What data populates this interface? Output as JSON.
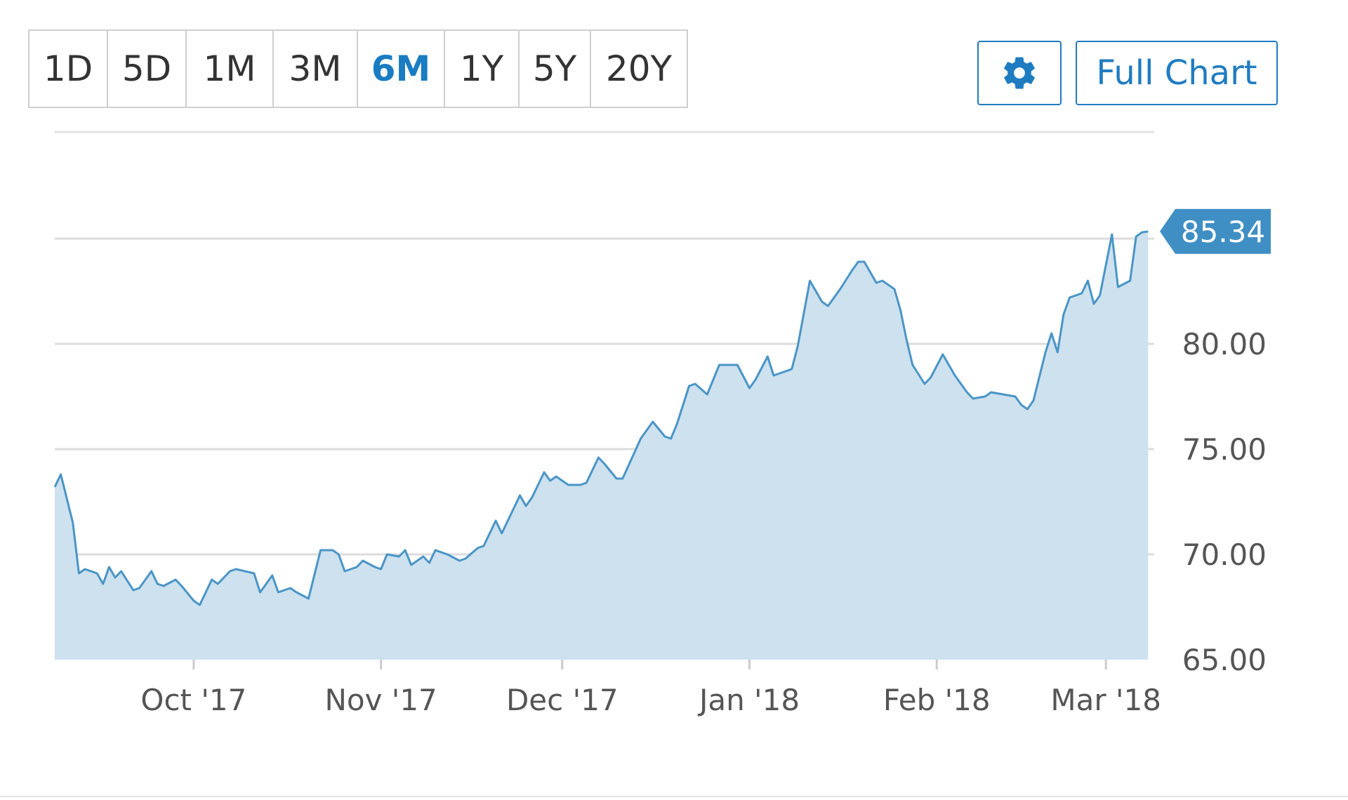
{
  "range_selector": {
    "options": [
      "1D",
      "5D",
      "1M",
      "3M",
      "6M",
      "1Y",
      "5Y",
      "20Y"
    ],
    "selected": "6M"
  },
  "toolbar": {
    "settings_icon": "gear-icon",
    "full_chart_label": "Full Chart"
  },
  "colors": {
    "accent": "#1f7cc1",
    "line": "#4a95c6",
    "area": "#cde1ef",
    "grid": "#dcdcdc",
    "label_bg": "#3f8fc4"
  },
  "chart_data": {
    "type": "area",
    "xlabel": "",
    "ylabel": "",
    "xlim": [
      "2017-09-08",
      "2018-03-09"
    ],
    "ylim": [
      65,
      85
    ],
    "y_ticks": [
      "65.00",
      "70.00",
      "75.00",
      "80.00"
    ],
    "x_ticks": [
      {
        "date": "2017-10-01",
        "label": "Oct '17"
      },
      {
        "date": "2017-11-01",
        "label": "Nov '17"
      },
      {
        "date": "2017-12-01",
        "label": "Dec '17"
      },
      {
        "date": "2018-01-01",
        "label": "Jan '18"
      },
      {
        "date": "2018-02-01",
        "label": "Feb '18"
      },
      {
        "date": "2018-03-01",
        "label": "Mar '18"
      }
    ],
    "last_value_label": "85.34",
    "grid": true,
    "series": [
      {
        "points": [
          [
            "2017-09-08",
            73.2
          ],
          [
            "2017-09-09",
            73.8
          ],
          [
            "2017-09-11",
            71.5
          ],
          [
            "2017-09-12",
            69.1
          ],
          [
            "2017-09-13",
            69.3
          ],
          [
            "2017-09-15",
            69.1
          ],
          [
            "2017-09-16",
            68.6
          ],
          [
            "2017-09-17",
            69.4
          ],
          [
            "2017-09-18",
            68.9
          ],
          [
            "2017-09-19",
            69.2
          ],
          [
            "2017-09-21",
            68.3
          ],
          [
            "2017-09-22",
            68.4
          ],
          [
            "2017-09-24",
            69.2
          ],
          [
            "2017-09-25",
            68.6
          ],
          [
            "2017-09-26",
            68.5
          ],
          [
            "2017-09-28",
            68.8
          ],
          [
            "2017-09-29",
            68.5
          ],
          [
            "2017-10-01",
            67.8
          ],
          [
            "2017-10-02",
            67.6
          ],
          [
            "2017-10-04",
            68.8
          ],
          [
            "2017-10-05",
            68.6
          ],
          [
            "2017-10-07",
            69.2
          ],
          [
            "2017-10-08",
            69.3
          ],
          [
            "2017-10-11",
            69.1
          ],
          [
            "2017-10-12",
            68.2
          ],
          [
            "2017-10-14",
            69.0
          ],
          [
            "2017-10-15",
            68.2
          ],
          [
            "2017-10-17",
            68.4
          ],
          [
            "2017-10-18",
            68.2
          ],
          [
            "2017-10-20",
            67.9
          ],
          [
            "2017-10-22",
            70.2
          ],
          [
            "2017-10-24",
            70.2
          ],
          [
            "2017-10-25",
            70.0
          ],
          [
            "2017-10-26",
            69.2
          ],
          [
            "2017-10-28",
            69.4
          ],
          [
            "2017-10-29",
            69.7
          ],
          [
            "2017-10-31",
            69.4
          ],
          [
            "2017-11-01",
            69.3
          ],
          [
            "2017-11-02",
            70.0
          ],
          [
            "2017-11-04",
            69.9
          ],
          [
            "2017-11-05",
            70.2
          ],
          [
            "2017-11-06",
            69.5
          ],
          [
            "2017-11-08",
            69.9
          ],
          [
            "2017-11-09",
            69.6
          ],
          [
            "2017-11-10",
            70.2
          ],
          [
            "2017-11-12",
            70.0
          ],
          [
            "2017-11-14",
            69.7
          ],
          [
            "2017-11-15",
            69.8
          ],
          [
            "2017-11-17",
            70.3
          ],
          [
            "2017-11-18",
            70.4
          ],
          [
            "2017-11-20",
            71.6
          ],
          [
            "2017-11-21",
            71.0
          ],
          [
            "2017-11-24",
            72.8
          ],
          [
            "2017-11-25",
            72.3
          ],
          [
            "2017-11-26",
            72.7
          ],
          [
            "2017-11-28",
            73.9
          ],
          [
            "2017-11-29",
            73.5
          ],
          [
            "2017-11-30",
            73.7
          ],
          [
            "2017-12-02",
            73.3
          ],
          [
            "2017-12-04",
            73.3
          ],
          [
            "2017-12-05",
            73.4
          ],
          [
            "2017-12-07",
            74.6
          ],
          [
            "2017-12-08",
            74.3
          ],
          [
            "2017-12-10",
            73.6
          ],
          [
            "2017-12-11",
            73.6
          ],
          [
            "2017-12-14",
            75.5
          ],
          [
            "2017-12-16",
            76.3
          ],
          [
            "2017-12-18",
            75.6
          ],
          [
            "2017-12-19",
            75.5
          ],
          [
            "2017-12-20",
            76.2
          ],
          [
            "2017-12-22",
            78.0
          ],
          [
            "2017-12-23",
            78.1
          ],
          [
            "2017-12-25",
            77.6
          ],
          [
            "2017-12-27",
            79.0
          ],
          [
            "2017-12-29",
            79.0
          ],
          [
            "2017-12-30",
            79.0
          ],
          [
            "2018-01-01",
            77.9
          ],
          [
            "2018-01-02",
            78.3
          ],
          [
            "2018-01-04",
            79.4
          ],
          [
            "2018-01-05",
            78.5
          ],
          [
            "2018-01-08",
            78.8
          ],
          [
            "2018-01-09",
            79.9
          ],
          [
            "2018-01-11",
            83.0
          ],
          [
            "2018-01-13",
            82.0
          ],
          [
            "2018-01-14",
            81.8
          ],
          [
            "2018-01-16",
            82.6
          ],
          [
            "2018-01-18",
            83.5
          ],
          [
            "2018-01-19",
            83.9
          ],
          [
            "2018-01-20",
            83.9
          ],
          [
            "2018-01-22",
            82.9
          ],
          [
            "2018-01-23",
            83.0
          ],
          [
            "2018-01-25",
            82.6
          ],
          [
            "2018-01-26",
            81.6
          ],
          [
            "2018-01-27",
            80.2
          ],
          [
            "2018-01-28",
            79.0
          ],
          [
            "2018-01-30",
            78.1
          ],
          [
            "2018-01-31",
            78.4
          ],
          [
            "2018-02-02",
            79.5
          ],
          [
            "2018-02-04",
            78.5
          ],
          [
            "2018-02-06",
            77.7
          ],
          [
            "2018-02-07",
            77.4
          ],
          [
            "2018-02-09",
            77.5
          ],
          [
            "2018-02-10",
            77.7
          ],
          [
            "2018-02-12",
            77.6
          ],
          [
            "2018-02-14",
            77.5
          ],
          [
            "2018-02-15",
            77.1
          ],
          [
            "2018-02-16",
            76.9
          ],
          [
            "2018-02-17",
            77.3
          ],
          [
            "2018-02-19",
            79.6
          ],
          [
            "2018-02-20",
            80.5
          ],
          [
            "2018-02-21",
            79.6
          ],
          [
            "2018-02-22",
            81.4
          ],
          [
            "2018-02-23",
            82.2
          ],
          [
            "2018-02-25",
            82.4
          ],
          [
            "2018-02-26",
            83.0
          ],
          [
            "2018-02-27",
            81.9
          ],
          [
            "2018-02-28",
            82.3
          ],
          [
            "2018-03-02",
            85.2
          ],
          [
            "2018-03-03",
            82.7
          ],
          [
            "2018-03-05",
            83.0
          ],
          [
            "2018-03-06",
            85.1
          ],
          [
            "2018-03-07",
            85.3
          ],
          [
            "2018-03-08",
            85.34
          ]
        ]
      }
    ]
  }
}
